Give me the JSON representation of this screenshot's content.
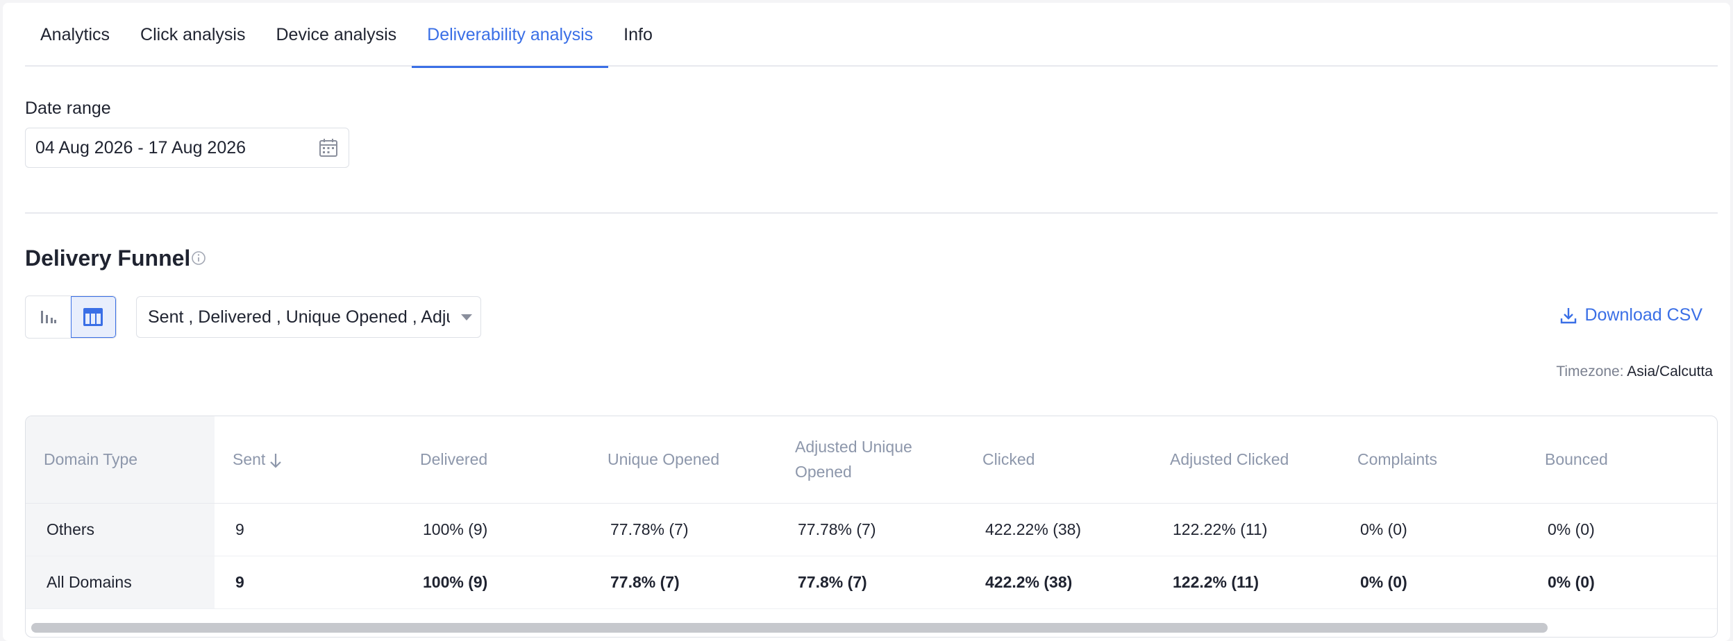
{
  "tabs": [
    {
      "label": "Analytics"
    },
    {
      "label": "Click analysis"
    },
    {
      "label": "Device analysis"
    },
    {
      "label": "Deliverability analysis",
      "active": true
    },
    {
      "label": "Info"
    }
  ],
  "date_range": {
    "label": "Date range",
    "value": "04 Aug 2026 - 17 Aug 2026",
    "icon": "calendar-icon"
  },
  "funnel": {
    "title": "Delivery Funnel",
    "metric_select_value": "Sent , Delivered , Unique Opened , Adjusted Unique Opened",
    "download_label": "Download CSV",
    "timezone_label": "Timezone:",
    "timezone_value": "Asia/Calcutta"
  },
  "table": {
    "headers": [
      "Domain Type",
      "Sent",
      "Delivered",
      "Unique Opened",
      "Adjusted Unique Opened",
      "Clicked",
      "Adjusted Clicked",
      "Complaints",
      "Bounced"
    ],
    "rows": [
      [
        "Others",
        "9",
        "100% (9)",
        "77.78% (7)",
        "77.78% (7)",
        "422.22% (38)",
        "122.22% (11)",
        "0% (0)",
        "0% (0)"
      ],
      [
        "All Domains",
        "9",
        "100% (9)",
        "77.8% (7)",
        "77.8% (7)",
        "422.2% (38)",
        "122.2% (11)",
        "0% (0)",
        "0% (0)"
      ]
    ]
  },
  "colors": {
    "accent": "#3a6fe6",
    "header_text": "#8d97ab",
    "border": "#dde0e6"
  }
}
